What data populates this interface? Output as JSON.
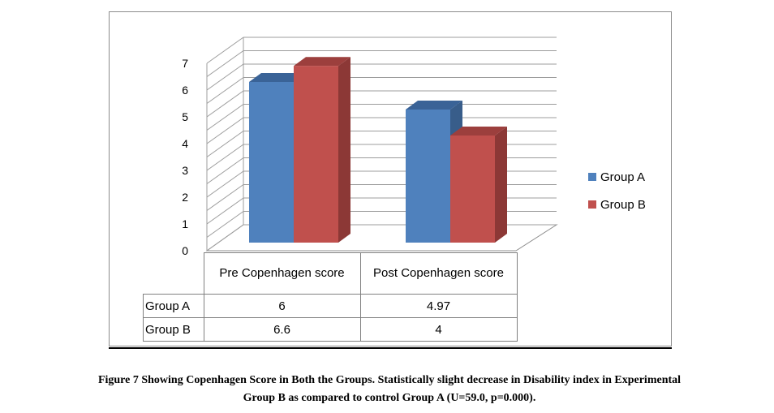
{
  "chart_data": {
    "type": "bar",
    "categories": [
      "Pre Copenhagen score",
      "Post Copenhagen score"
    ],
    "series": [
      {
        "name": "Group A",
        "values": [
          6,
          4.97
        ],
        "labels": [
          "6",
          "4.97"
        ],
        "color": "#4f81bd",
        "side": "#385d8a",
        "top": "#3a6397"
      },
      {
        "name": "Group B",
        "values": [
          6.6,
          4
        ],
        "labels": [
          "6.6",
          "4"
        ],
        "color": "#c0504d",
        "side": "#8c3836",
        "top": "#9c3f3d"
      }
    ],
    "yticks": [
      0,
      1,
      2,
      3,
      4,
      5,
      6,
      7
    ],
    "ylim": [
      0,
      7
    ],
    "legend_position": "right",
    "style": "3d-clustered-column-with-data-table"
  },
  "table": {
    "header": [
      "Pre Copenhagen score",
      "Post Copenhagen score"
    ],
    "rows": [
      {
        "label": "Group A",
        "cells": [
          "6",
          "4.97"
        ]
      },
      {
        "label": "Group B",
        "cells": [
          "6.6",
          "4"
        ]
      }
    ]
  },
  "legend": [
    {
      "label": "Group A",
      "color": "#4f81bd"
    },
    {
      "label": "Group B",
      "color": "#c0504d"
    }
  ],
  "caption": {
    "line1": "Figure 7 Showing Copenhagen Score in Both the Groups. Statistically slight decrease in Disability index in Experimental",
    "line2": "Group B as compared to control Group A (U=59.0, p=0.000)."
  }
}
